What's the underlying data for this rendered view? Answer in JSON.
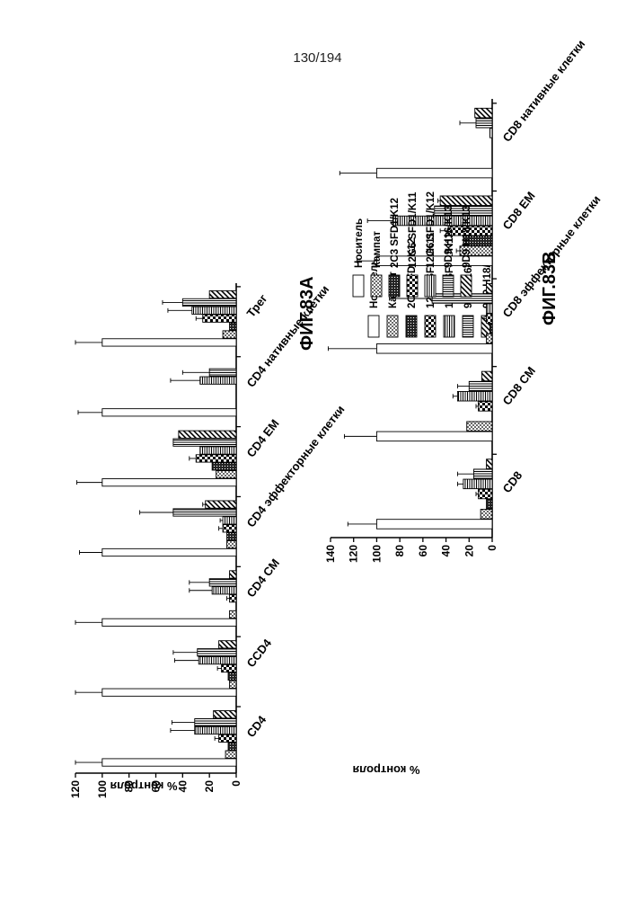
{
  "page": {
    "number": "130/194"
  },
  "chart_data": [
    {
      "type": "bar",
      "title": "ФИГ.83А",
      "ylabel": "% контроля",
      "ylim": [
        0,
        120
      ],
      "yticks": [
        0,
        20,
        40,
        60,
        80,
        100,
        120
      ],
      "categories": [
        "CD4",
        "CCD4",
        "CD4 CM",
        "CD4 эффекторные клетки",
        "CD4 EM",
        "CD4 нативные клетки",
        "Трег"
      ],
      "series": [
        {
          "name": "Носитель",
          "pattern": "white",
          "values": [
            100,
            100,
            100,
            100,
            100,
            100,
            100
          ],
          "errors": [
            20,
            20,
            20,
            17,
            19,
            18,
            20
          ]
        },
        {
          "name": "Кампат",
          "pattern": "dots",
          "values": [
            8,
            5,
            5,
            7,
            15,
            0,
            10
          ],
          "errors": [
            0,
            0,
            0,
            0,
            0,
            0,
            0
          ]
        },
        {
          "name": "2C3 SFD1/K12",
          "pattern": "dense",
          "values": [
            6,
            6,
            0,
            7,
            18,
            0,
            5
          ],
          "errors": [
            0,
            0,
            0,
            0,
            0,
            0,
            0
          ]
        },
        {
          "name": "12G6 SFD1/K11",
          "pattern": "checker",
          "values": [
            13,
            11,
            5,
            10,
            30,
            0,
            25
          ],
          "errors": [
            3,
            3,
            2,
            3,
            5,
            0,
            5
          ]
        },
        {
          "name": "12G6 SFD1/K12",
          "pattern": "hlines",
          "values": [
            31,
            28,
            18,
            10,
            27,
            27,
            33
          ],
          "errors": [
            18,
            18,
            17,
            2,
            0,
            22,
            18
          ]
        },
        {
          "name": "9D9 H16/K13",
          "pattern": "vlines",
          "values": [
            31,
            29,
            20,
            47,
            47,
            20,
            40
          ],
          "errors": [
            17,
            18,
            15,
            25,
            0,
            20,
            15
          ]
        },
        {
          "name": "9D9 H18/K13",
          "pattern": "diag",
          "values": [
            17,
            13,
            5,
            23,
            43,
            0,
            20
          ],
          "errors": [
            0,
            0,
            0,
            2,
            0,
            0,
            0
          ]
        }
      ]
    },
    {
      "type": "bar",
      "title": "ФИГ.83В",
      "ylabel": "% контроля",
      "ylim": [
        0,
        140
      ],
      "yticks": [
        0,
        20,
        40,
        60,
        80,
        100,
        120,
        140
      ],
      "categories": [
        "CD8",
        "CD8 CM",
        "CD8 эффекторные клетки",
        "CD8 EM",
        "CD8 нативные клетки"
      ],
      "series": [
        {
          "name": "Носитель",
          "pattern": "white",
          "values": [
            100,
            100,
            100,
            100,
            100
          ],
          "errors": [
            25,
            28,
            42,
            17,
            32
          ]
        },
        {
          "name": "Кампат",
          "pattern": "dots",
          "values": [
            10,
            22,
            5,
            28,
            0
          ],
          "errors": [
            0,
            0,
            0,
            3,
            0
          ]
        },
        {
          "name": "2C3 SFD1/K12",
          "pattern": "dense",
          "values": [
            5,
            0,
            2,
            25,
            0
          ],
          "errors": [
            0,
            0,
            0,
            0,
            0
          ]
        },
        {
          "name": "12G6 SFD1/K11",
          "pattern": "checker",
          "values": [
            12,
            12,
            5,
            38,
            0
          ],
          "errors": [
            2,
            2,
            2,
            7,
            0
          ]
        },
        {
          "name": "12G6 SFD1/K12",
          "pattern": "hlines",
          "values": [
            25,
            30,
            5,
            86,
            2
          ],
          "errors": [
            5,
            4,
            0,
            22,
            0
          ]
        },
        {
          "name": "9D9 H16/K13",
          "pattern": "vlines",
          "values": [
            16,
            20,
            52,
            50,
            14
          ],
          "errors": [
            14,
            10,
            37,
            0,
            14
          ]
        },
        {
          "name": "9D9 H18/K13",
          "pattern": "diag",
          "values": [
            5,
            9,
            5,
            45,
            15
          ],
          "errors": [
            0,
            0,
            0,
            2,
            0
          ]
        }
      ]
    }
  ]
}
